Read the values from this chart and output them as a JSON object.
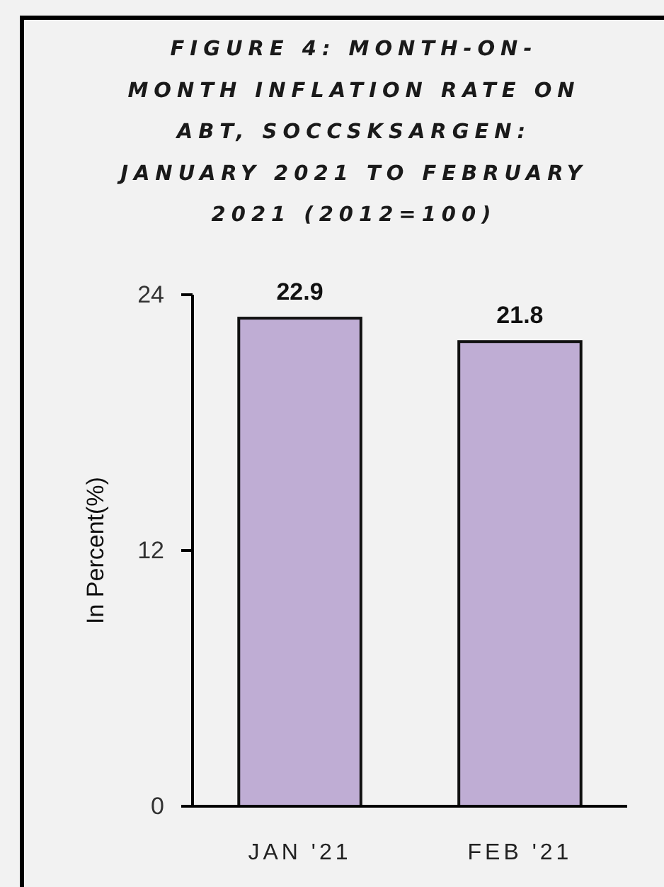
{
  "chart_data": {
    "type": "bar",
    "title": "FIGURE 4: MONTH-ON-MONTH INFLATION RATE ON ABT, SOCCSKSARGEN: JANUARY 2021 TO FEBRUARY 2021 (2012=100)",
    "ylabel": "In Percent(%)",
    "categories": [
      "JAN '21",
      "FEB '21"
    ],
    "values": [
      22.9,
      21.8
    ],
    "color": "#bfadd4",
    "ylim": [
      0,
      24
    ],
    "yticks": [
      0,
      12,
      24
    ],
    "data_labels": true
  }
}
